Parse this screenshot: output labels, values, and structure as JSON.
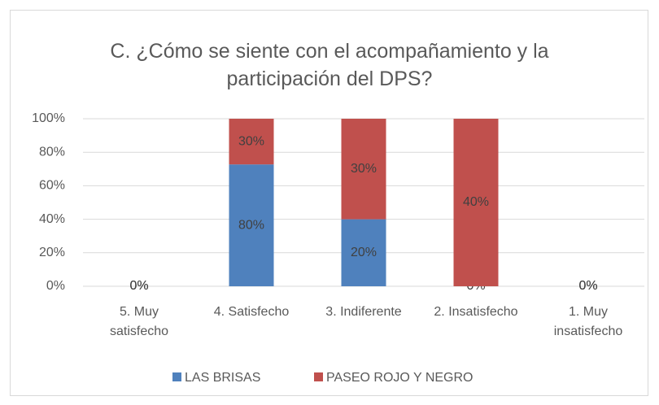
{
  "chart_data": {
    "type": "bar",
    "stacking": "percent",
    "title": "C. ¿Cómo se siente con el acompañamiento y la participación del DPS?",
    "categories": [
      "5. Muy satisfecho",
      "4. Satisfecho",
      "3. Indiferente",
      "2. Insatisfecho",
      "1. Muy insatisfecho"
    ],
    "series": [
      {
        "name": "LAS BRISAS",
        "color": "#4f81bd",
        "values": [
          0,
          80,
          20,
          0,
          0
        ],
        "value_labels": [
          "0%",
          "80%",
          "20%",
          "0%",
          "0%"
        ]
      },
      {
        "name": "PASEO ROJO Y NEGRO",
        "color": "#c0504d",
        "values": [
          0,
          30,
          30,
          40,
          0
        ],
        "value_labels": [
          "0%",
          "30%",
          "30%",
          "40%",
          "0%"
        ]
      }
    ],
    "ylim": [
      0,
      100
    ],
    "yticks": [
      {
        "value": 0,
        "label": "0%"
      },
      {
        "value": 20,
        "label": "20%"
      },
      {
        "value": 40,
        "label": "40%"
      },
      {
        "value": 60,
        "label": "60%"
      },
      {
        "value": 80,
        "label": "80%"
      },
      {
        "value": 100,
        "label": "100%"
      }
    ],
    "grid": true,
    "legend": "bottom"
  }
}
